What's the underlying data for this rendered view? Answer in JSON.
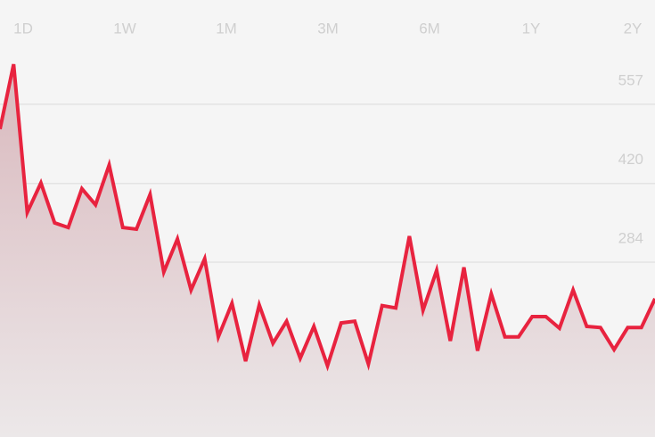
{
  "chart_data": {
    "type": "line",
    "ranges": [
      "1D",
      "1W",
      "1M",
      "3M",
      "6M",
      "1Y",
      "2Y"
    ],
    "categories": [
      null,
      null,
      null,
      null,
      null,
      null,
      null,
      null,
      null,
      null,
      null,
      null,
      null,
      null,
      null,
      null,
      null,
      null,
      null,
      null,
      null,
      null,
      null,
      null,
      null,
      null,
      null,
      null,
      null,
      null,
      null,
      null,
      null,
      null,
      null,
      null,
      null,
      null,
      null,
      null,
      null,
      null,
      null,
      null,
      null,
      null,
      null,
      null,
      null
    ],
    "series": [
      {
        "color": "#e8233f",
        "values": [
          514,
          626,
          370,
          421,
          352,
          344,
          411,
          383,
          452,
          344,
          341,
          401,
          267,
          324,
          236,
          290,
          155,
          213,
          113,
          210,
          144,
          182,
          118,
          173,
          105,
          179,
          182,
          108,
          209,
          205,
          329,
          201,
          270,
          148,
          275,
          131,
          229,
          155,
          155,
          190,
          190,
          170,
          236,
          173,
          171,
          133,
          171,
          171,
          221
        ]
      }
    ],
    "ylim": [
      -18,
      737
    ],
    "yticks": [
      284,
      420,
      557
    ],
    "grid": true
  }
}
